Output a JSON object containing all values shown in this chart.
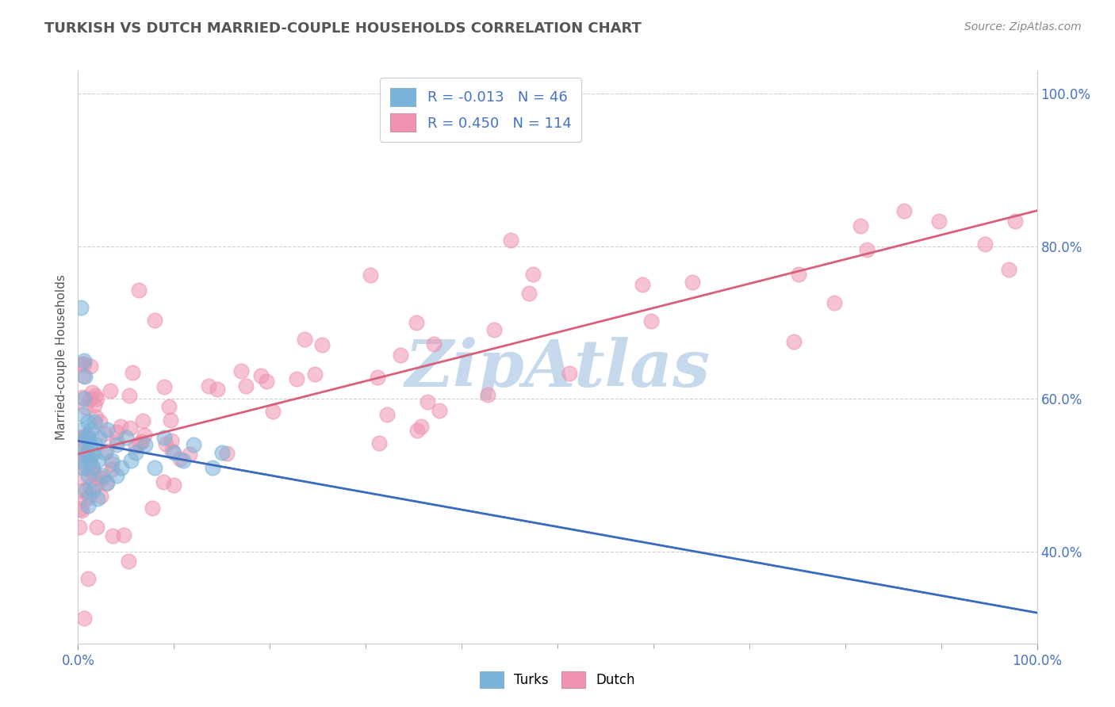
{
  "title": "TURKISH VS DUTCH MARRIED-COUPLE HOUSEHOLDS CORRELATION CHART",
  "source_text": "Source: ZipAtlas.com",
  "ylabel": "Married-couple Households",
  "legend_entries": [
    {
      "label": "Turks",
      "color_patch": "#a8c4e0",
      "R": "-0.013",
      "N": "46"
    },
    {
      "label": "Dutch",
      "color_patch": "#f4a7b9",
      "R": "0.450",
      "N": "114"
    }
  ],
  "turks_scatter_color": "#7ab3d9",
  "dutch_scatter_color": "#f093b0",
  "turks_line_color": "#3a6bbf",
  "dutch_line_color": "#d9607a",
  "background_color": "#ffffff",
  "grid_color": "#cccccc",
  "watermark_text": "ZipAtlas",
  "watermark_color": "#c5d8ec",
  "title_color": "#555555",
  "axis_label_color": "#4472c4",
  "tick_label_color": "#4472c4",
  "source_color": "#888888",
  "xlim": [
    0,
    100
  ],
  "ylim": [
    28,
    103
  ],
  "yticks": [
    40,
    60,
    80,
    100
  ],
  "xticks": [
    0,
    100
  ],
  "scatter_size": 180,
  "scatter_alpha": 0.55,
  "scatter_linewidth": 1.2
}
